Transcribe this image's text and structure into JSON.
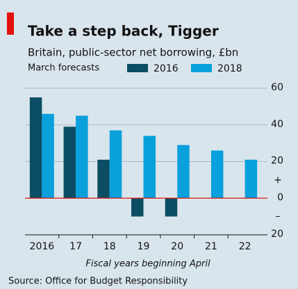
{
  "chart_data": {
    "type": "bar",
    "title": "Take a step back, Tigger",
    "subtitle": "Britain, public-sector net borrowing, £bn",
    "note": "March forecasts",
    "x_label": "Fiscal years beginning April",
    "source": "Source: Office for Budget Responsibility",
    "categories": [
      "2016",
      "17",
      "18",
      "19",
      "20",
      "21",
      "22"
    ],
    "series": [
      {
        "name": "2016",
        "color": "#0b4d63",
        "values": [
          55,
          39,
          21,
          -10,
          -10,
          null,
          null
        ]
      },
      {
        "name": "2018",
        "color": "#0aa0dc",
        "values": [
          46,
          45,
          37,
          34,
          29,
          26,
          21
        ]
      }
    ],
    "ylim": [
      -20,
      60
    ],
    "yticks": [
      {
        "value": -20,
        "label": "20"
      },
      0,
      20,
      40,
      60
    ],
    "positive_sign": "+",
    "negative_sign": "–",
    "zero_line_color": "#e3120b",
    "grid": true
  }
}
